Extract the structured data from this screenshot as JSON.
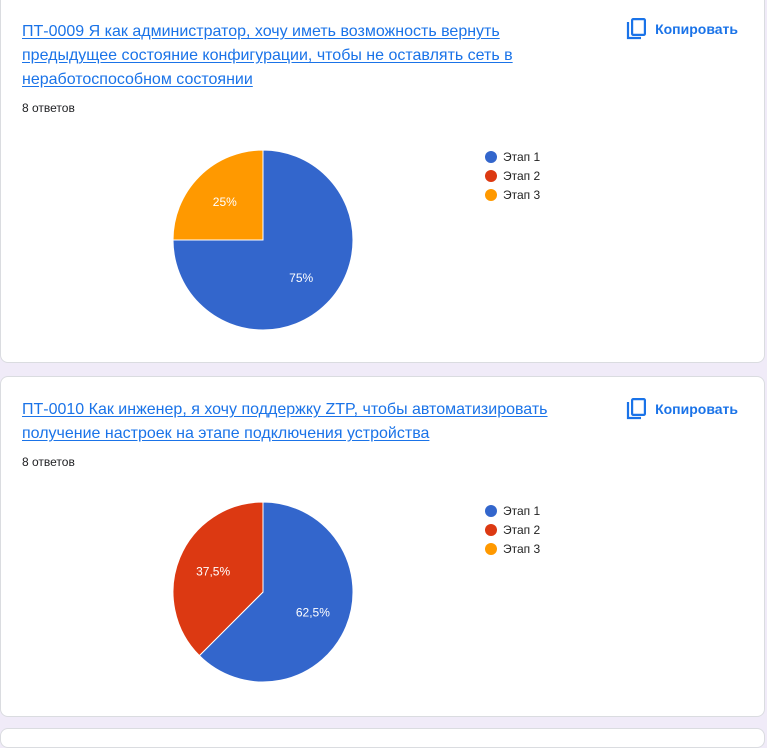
{
  "copy_label": "Копировать",
  "questions": [
    {
      "title": "ПТ-0009 Я как администратор, хочу иметь возможность вернуть предыдущее состояние конфигурации, чтобы не оставлять сеть в неработоспособном состоянии",
      "responses": "8 ответов"
    },
    {
      "title": "ПТ-0010 Как инженер, я хочу поддержку ZTP, чтобы автоматизировать получение настроек на этапе подключения устройства ",
      "responses": "8 ответов"
    }
  ],
  "chart_data": [
    {
      "type": "pie",
      "categories": [
        "Этап 1",
        "Этап 2",
        "Этап 3"
      ],
      "values": [
        75,
        0,
        25
      ],
      "data_labels": [
        "75%",
        "",
        "25%"
      ],
      "colors": [
        "#3366cc",
        "#dc3912",
        "#ff9900"
      ],
      "legend": "right"
    },
    {
      "type": "pie",
      "categories": [
        "Этап 1",
        "Этап 2",
        "Этап 3"
      ],
      "values": [
        62.5,
        37.5,
        0
      ],
      "data_labels": [
        "62,5%",
        "37,5%",
        ""
      ],
      "colors": [
        "#3366cc",
        "#dc3912",
        "#ff9900"
      ],
      "legend": "right"
    }
  ]
}
